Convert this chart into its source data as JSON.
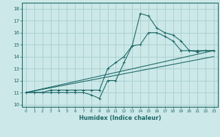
{
  "xlabel": "Humidex (Indice chaleur)",
  "xlim": [
    -0.5,
    23.5
  ],
  "ylim": [
    9.8,
    18.5
  ],
  "xticks": [
    0,
    1,
    2,
    3,
    4,
    5,
    6,
    7,
    8,
    9,
    10,
    11,
    12,
    13,
    14,
    15,
    16,
    17,
    18,
    19,
    20,
    21,
    22,
    23
  ],
  "yticks": [
    10,
    11,
    12,
    13,
    14,
    15,
    16,
    17,
    18
  ],
  "bg_color": "#cce8e8",
  "grid_color": "#aad0d0",
  "line_color": "#1a6666",
  "lines": [
    {
      "x": [
        0,
        1,
        2,
        3,
        4,
        5,
        6,
        7,
        8,
        9,
        10,
        11,
        12,
        13,
        14,
        15,
        16,
        17,
        18,
        19,
        20,
        21,
        22,
        23
      ],
      "y": [
        11,
        11,
        11,
        11,
        11,
        11,
        11,
        11,
        10.8,
        10.5,
        12,
        12,
        13.5,
        14.9,
        17.6,
        17.4,
        16.4,
        16.0,
        15.8,
        15.3,
        14.5,
        14.4,
        14.5,
        14.5
      ],
      "marker": true
    },
    {
      "x": [
        0,
        1,
        2,
        3,
        4,
        5,
        6,
        7,
        8,
        9,
        10,
        11,
        12,
        13,
        14,
        15,
        16,
        17,
        18,
        19,
        20,
        21,
        22,
        23
      ],
      "y": [
        11,
        11,
        11,
        11.2,
        11.2,
        11.2,
        11.2,
        11.2,
        11.2,
        11.2,
        13,
        13.5,
        14,
        14.9,
        15.0,
        16.0,
        16.0,
        15.7,
        15.3,
        14.5,
        14.5,
        14.5,
        14.5,
        14.5
      ],
      "marker": true
    },
    {
      "x": [
        0,
        23
      ],
      "y": [
        11,
        14.0
      ],
      "marker": false
    },
    {
      "x": [
        0,
        23
      ],
      "y": [
        11,
        14.5
      ],
      "marker": false
    }
  ]
}
